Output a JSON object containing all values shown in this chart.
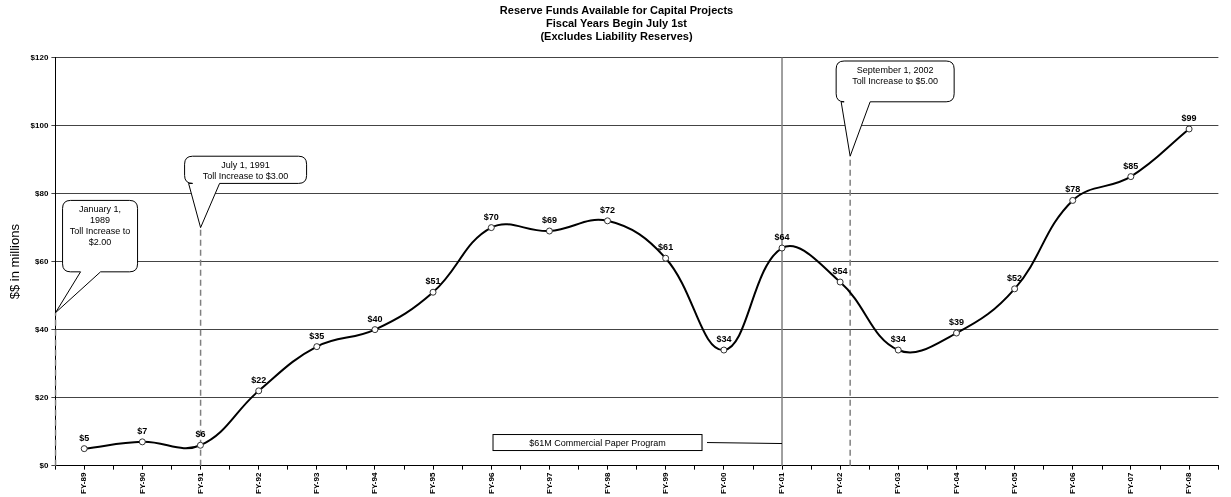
{
  "chart_data": {
    "type": "line",
    "title": "Reserve Funds Available for Capital Projects",
    "subtitle": "Fiscal Years Begin July 1st\n(Excludes Liability Reserves)",
    "ylabel": "$$ in millions",
    "x": [
      "1989-06-30",
      "1990-06-30",
      "1991-06-30",
      "1992-06-30",
      "1993-06-30",
      "1994-06-30",
      "1995-06-30",
      "1996-06-30",
      "1997-06-30",
      "1998-06-30",
      "1999-06-30",
      "2000-06-30",
      "2001-06-30",
      "2002-06-30",
      "2003-06-30",
      "2004-06-30",
      "2005-06-30",
      "2006-06-30",
      "2007-06-30",
      "2008-06-30"
    ],
    "series": [
      {
        "color": "#000000",
        "values": [
          5,
          7,
          6,
          22,
          35,
          40,
          51,
          70,
          69,
          72,
          61,
          34,
          64,
          54,
          34,
          39,
          52,
          78,
          85,
          99
        ],
        "value_labels": [
          "$5",
          "$7",
          "$6",
          "$22",
          "$35",
          "$40",
          "$51",
          "$70",
          "$69",
          "$72",
          "$61",
          "$34",
          "$64",
          "$54",
          "$34",
          "$39",
          "$52",
          "$78",
          "$85",
          "$99"
        ]
      }
    ],
    "xlim": [
      "1988-12-31",
      "2008-12-31"
    ],
    "xticks": [
      {
        "value": "1988-12-31",
        "label": null
      },
      {
        "value": "1989-06-30",
        "label": "FY-89"
      },
      {
        "value": "1989-12-31",
        "label": null
      },
      {
        "value": "1990-06-30",
        "label": "FY-90"
      },
      {
        "value": "1990-12-31",
        "label": null
      },
      {
        "value": "1991-06-30",
        "label": "FY-91"
      },
      {
        "value": "1991-12-31",
        "label": null
      },
      {
        "value": "1992-06-30",
        "label": "FY-92"
      },
      {
        "value": "1992-12-31",
        "label": null
      },
      {
        "value": "1993-06-30",
        "label": "FY-93"
      },
      {
        "value": "1993-12-31",
        "label": null
      },
      {
        "value": "1994-06-30",
        "label": "FY-94"
      },
      {
        "value": "1994-12-31",
        "label": null
      },
      {
        "value": "1995-06-30",
        "label": "FY-95"
      },
      {
        "value": "1995-12-31",
        "label": null
      },
      {
        "value": "1996-06-30",
        "label": "FY-96"
      },
      {
        "value": "1996-12-31",
        "label": null
      },
      {
        "value": "1997-06-30",
        "label": "FY-97"
      },
      {
        "value": "1997-12-31",
        "label": null
      },
      {
        "value": "1998-06-30",
        "label": "FY-98"
      },
      {
        "value": "1998-12-31",
        "label": null
      },
      {
        "value": "1999-06-30",
        "label": "FY-99"
      },
      {
        "value": "1999-12-31",
        "label": null
      },
      {
        "value": "2000-06-30",
        "label": "FY-00"
      },
      {
        "value": "2000-12-31",
        "label": null
      },
      {
        "value": "2001-06-30",
        "label": "FY-01"
      },
      {
        "value": "2001-12-31",
        "label": null
      },
      {
        "value": "2002-06-30",
        "label": "FY-02"
      },
      {
        "value": "2002-12-31",
        "label": null
      },
      {
        "value": "2003-06-30",
        "label": "FY-03"
      },
      {
        "value": "2003-12-31",
        "label": null
      },
      {
        "value": "2004-06-30",
        "label": "FY-04"
      },
      {
        "value": "2004-12-31",
        "label": null
      },
      {
        "value": "2005-06-30",
        "label": "FY-05"
      },
      {
        "value": "2005-12-31",
        "label": null
      },
      {
        "value": "2006-06-30",
        "label": "FY-06"
      },
      {
        "value": "2006-12-31",
        "label": null
      },
      {
        "value": "2007-06-30",
        "label": "FY-07"
      },
      {
        "value": "2007-12-31",
        "label": null
      },
      {
        "value": "2008-06-30",
        "label": "FY-08"
      },
      {
        "value": "2008-12-31",
        "label": null
      }
    ],
    "ylim": [
      0,
      120
    ],
    "yticks": [
      {
        "value": 0,
        "label": "$0"
      },
      {
        "value": 20,
        "label": "$20"
      },
      {
        "value": 40,
        "label": "$40"
      },
      {
        "value": 60,
        "label": "$60"
      },
      {
        "value": 80,
        "label": "$80"
      },
      {
        "value": 100,
        "label": "$100"
      },
      {
        "value": 120,
        "label": "$120"
      }
    ],
    "ref_lines": [
      {
        "axis": "x",
        "value": "1989-01-01",
        "color": "#808080",
        "line_style": "dashed"
      },
      {
        "axis": "x",
        "value": "1991-07-01",
        "color": "#808080",
        "line_style": "dashed"
      },
      {
        "axis": "x",
        "value": "2001-06-30",
        "color": "#808080",
        "line_style": "solid"
      },
      {
        "axis": "x",
        "value": "2002-09-01",
        "color": "#808080",
        "line_style": "dashed"
      }
    ],
    "annotations": [
      "January 1,\n1989\nToll Increase to\n$2.00",
      "July 1, 1991\nToll Increase to $3.00",
      "$61M Commercial Paper Program",
      "September 1, 2002\nToll Increase to $5.00"
    ],
    "grid": "y",
    "marker": "circle",
    "line_style": "solid"
  }
}
